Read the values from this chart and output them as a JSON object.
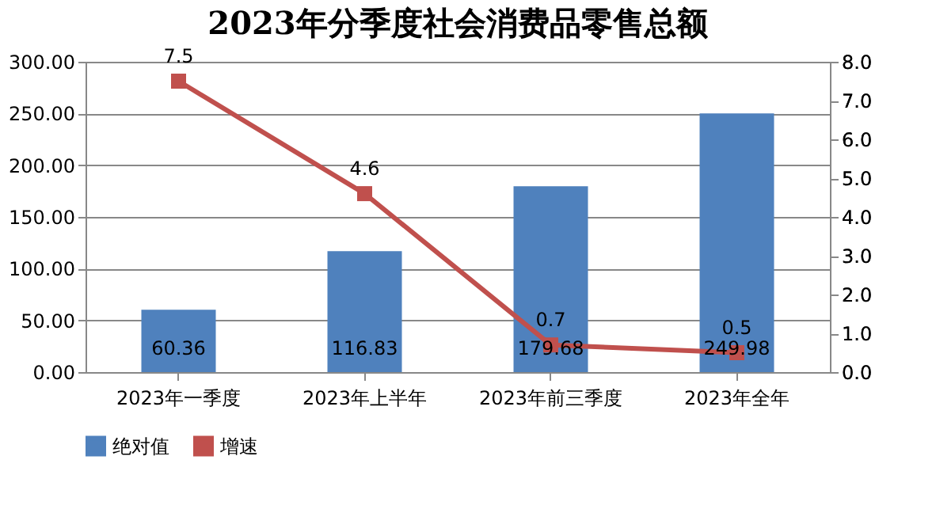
{
  "chart_data": {
    "type": "bar",
    "title": "2023年分季度社会消费品零售总额",
    "categories": [
      "2023年一季度",
      "2023年上半年",
      "2023年前三季度",
      "2023年全年"
    ],
    "series": [
      {
        "name": "绝对值",
        "color": "#4f81bd",
        "values": [
          60.36,
          116.83,
          179.68,
          249.98
        ]
      },
      {
        "name": "增速",
        "type": "line",
        "axis": "y2",
        "color": "#c0504d",
        "values": [
          7.5,
          4.6,
          0.7,
          0.5
        ]
      }
    ],
    "ylim": [
      0,
      300
    ],
    "yticks": [
      {
        "value": 0,
        "label": "0.00"
      },
      {
        "value": 50,
        "label": "50.00"
      },
      {
        "value": 100,
        "label": "100.00"
      },
      {
        "value": 150,
        "label": "150.00"
      },
      {
        "value": 200,
        "label": "200.00"
      },
      {
        "value": 250,
        "label": "250.00"
      },
      {
        "value": 300,
        "label": "300.00"
      }
    ],
    "y2lim": [
      0,
      8
    ],
    "y2ticks": [
      {
        "value": 0,
        "label": "0.0"
      },
      {
        "value": 1,
        "label": "1.0"
      },
      {
        "value": 2,
        "label": "2.0"
      },
      {
        "value": 3,
        "label": "3.0"
      },
      {
        "value": 4,
        "label": "4.0"
      },
      {
        "value": 5,
        "label": "5.0"
      },
      {
        "value": 6,
        "label": "6.0"
      },
      {
        "value": 7,
        "label": "7.0"
      },
      {
        "value": 8,
        "label": "8.0"
      }
    ],
    "data_labels": true,
    "grid": "y",
    "legend": "bottom",
    "marker": "square",
    "line_style": "solid"
  }
}
